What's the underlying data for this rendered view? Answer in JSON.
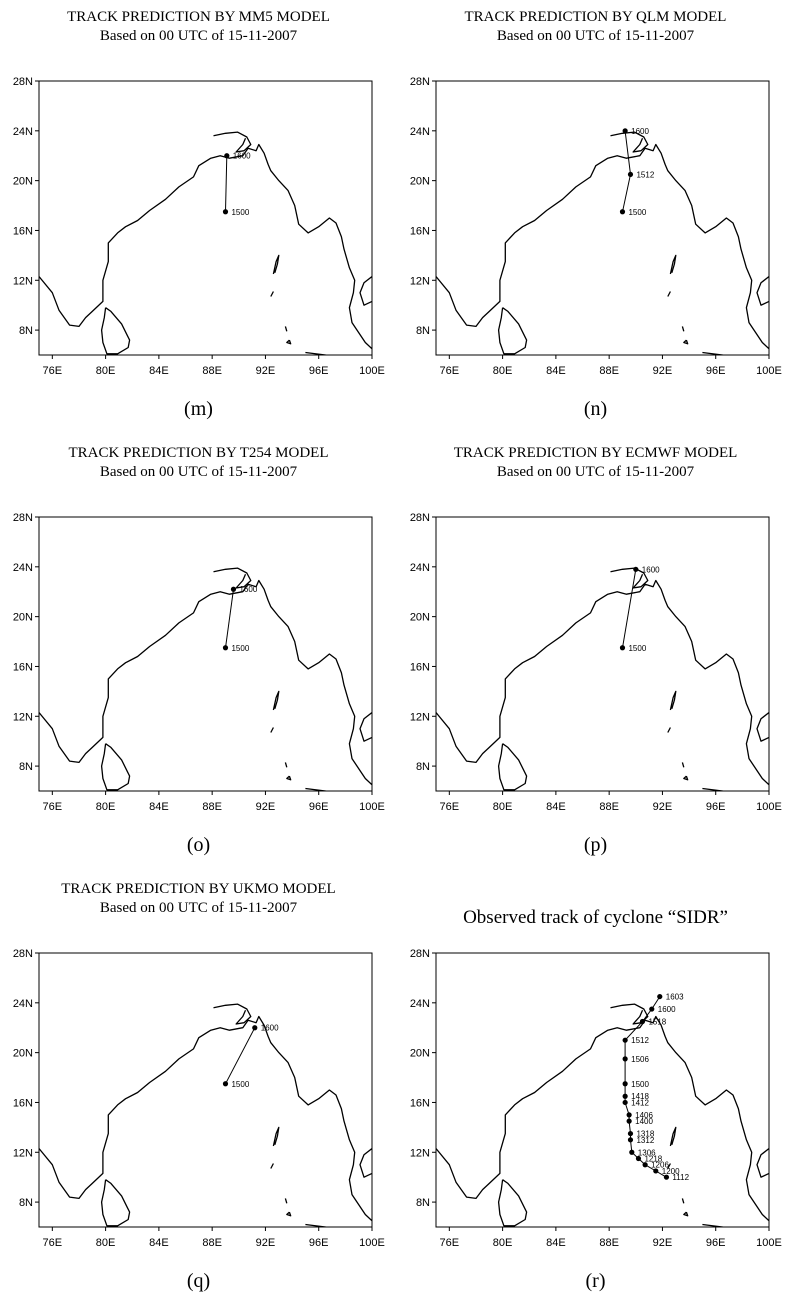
{
  "panels": [
    {
      "title": "TRACK PREDICTION BY MM5 MODEL",
      "subtitle": "Based on 00 UTC  of 15-11-2007",
      "caption": "(m)",
      "track": [
        {
          "lon": 89.0,
          "lat": 17.5,
          "label": "1500"
        },
        {
          "lon": 89.1,
          "lat": 22.0,
          "label": "1600"
        }
      ]
    },
    {
      "title": "TRACK PREDICTION BY QLM MODEL",
      "subtitle": "Based on 00 UTC  of 15-11-2007",
      "caption": "(n)",
      "track": [
        {
          "lon": 89.0,
          "lat": 17.5,
          "label": "1500"
        },
        {
          "lon": 89.6,
          "lat": 20.5,
          "label": "1512"
        },
        {
          "lon": 89.2,
          "lat": 24.0,
          "label": "1600"
        }
      ]
    },
    {
      "title": "TRACK PREDICTION BY T254 MODEL",
      "subtitle": "Based on 00 UTC  of 15-11-2007",
      "caption": "(o)",
      "track": [
        {
          "lon": 89.0,
          "lat": 17.5,
          "label": "1500"
        },
        {
          "lon": 89.6,
          "lat": 22.2,
          "label": "1600"
        }
      ]
    },
    {
      "title": "TRACK PREDICTION BY ECMWF  MODEL",
      "subtitle": "Based on 00 UTC  of 15-11-2007",
      "caption": "(p)",
      "track": [
        {
          "lon": 89.0,
          "lat": 17.5,
          "label": "1500"
        },
        {
          "lon": 90.0,
          "lat": 23.8,
          "label": "1600"
        }
      ]
    },
    {
      "title": "TRACK PREDICTION BY UKMO MODEL",
      "subtitle": "Based on 00 UTC  of 15-11-2007",
      "caption": "(q)",
      "track": [
        {
          "lon": 89.0,
          "lat": 17.5,
          "label": "1500"
        },
        {
          "lon": 91.2,
          "lat": 22.0,
          "label": "1600"
        }
      ]
    },
    {
      "title": "Observed track of cyclone “SIDR”",
      "subtitle": "",
      "caption": "(r)",
      "track": [
        {
          "lon": 92.3,
          "lat": 10.0,
          "label": "1112"
        },
        {
          "lon": 91.5,
          "lat": 10.5,
          "label": "1200"
        },
        {
          "lon": 90.7,
          "lat": 11.0,
          "label": "1206"
        },
        {
          "lon": 90.2,
          "lat": 11.5,
          "label": "1218"
        },
        {
          "lon": 89.7,
          "lat": 12.0,
          "label": "1306"
        },
        {
          "lon": 89.6,
          "lat": 13.0,
          "label": "1312"
        },
        {
          "lon": 89.6,
          "lat": 13.5,
          "label": "1318"
        },
        {
          "lon": 89.5,
          "lat": 14.5,
          "label": "1400"
        },
        {
          "lon": 89.5,
          "lat": 15.0,
          "label": "1406"
        },
        {
          "lon": 89.2,
          "lat": 16.0,
          "label": "1412"
        },
        {
          "lon": 89.2,
          "lat": 16.5,
          "label": "1418"
        },
        {
          "lon": 89.2,
          "lat": 17.5,
          "label": "1500"
        },
        {
          "lon": 89.2,
          "lat": 19.5,
          "label": "1506"
        },
        {
          "lon": 89.2,
          "lat": 21.0,
          "label": "1512"
        },
        {
          "lon": 90.5,
          "lat": 22.5,
          "label": "1518"
        },
        {
          "lon": 91.2,
          "lat": 23.5,
          "label": "1600"
        },
        {
          "lon": 91.8,
          "lat": 24.5,
          "label": "1603"
        }
      ]
    }
  ],
  "axes": {
    "x_ticks": [
      "76E",
      "80E",
      "84E",
      "88E",
      "92E",
      "96E",
      "100E"
    ],
    "y_ticks": [
      "8N",
      "12N",
      "16N",
      "20N",
      "24N",
      "28N"
    ]
  },
  "colors": {
    "ink": "#000000",
    "background": "#ffffff"
  }
}
